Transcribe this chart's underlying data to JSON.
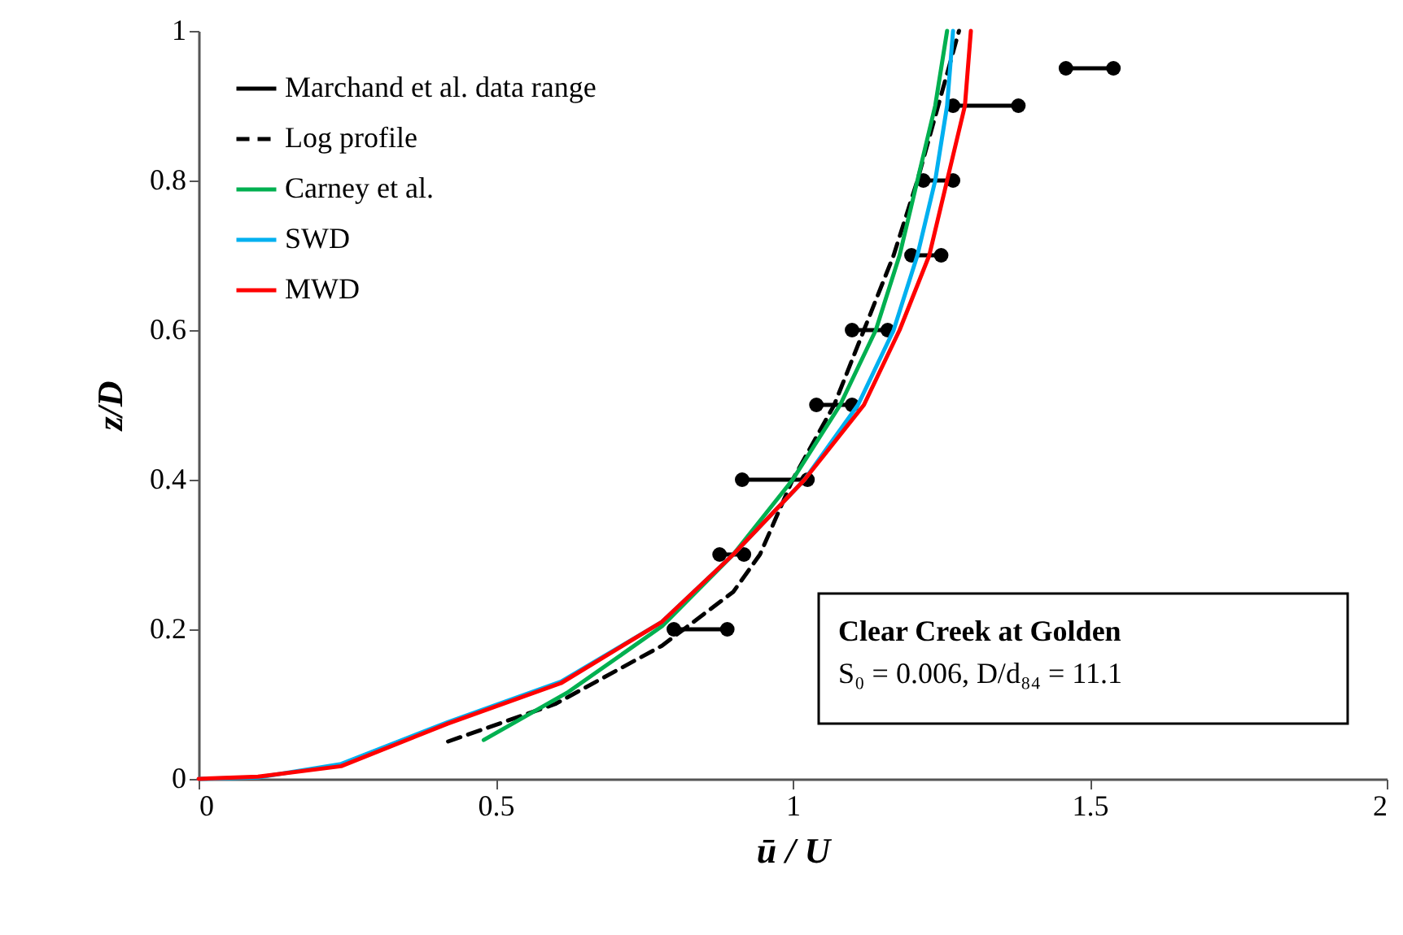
{
  "chart_data": {
    "type": "line",
    "xlabel": "ū / U",
    "ylabel": "z/D",
    "xlim": [
      0,
      2
    ],
    "xticks": [
      0,
      0.5,
      1,
      1.5,
      2
    ],
    "ylim": [
      0,
      1
    ],
    "yticks": [
      0,
      0.2,
      0.4,
      0.6,
      0.8,
      1
    ],
    "grid": false,
    "legend": "top left",
    "series": [
      {
        "name": "Marchand et al. data range",
        "color": "#000000",
        "marker": "circle",
        "line_style": "solid",
        "x": [
          1.46,
          1.54,
          null,
          1.27,
          1.38,
          null,
          1.22,
          1.27,
          null,
          1.2,
          1.25,
          null,
          1.1,
          1.16,
          null,
          1.04,
          1.1,
          null,
          0.915,
          1.025,
          null,
          0.877,
          0.918,
          null,
          0.8,
          0.89
        ],
        "values": [
          0.95,
          0.95,
          null,
          0.9,
          0.9,
          null,
          0.8,
          0.8,
          null,
          0.7,
          0.7,
          null,
          0.6,
          0.6,
          null,
          0.5,
          0.5,
          null,
          0.4,
          0.4,
          null,
          0.3,
          0.3,
          null,
          0.2,
          0.2
        ]
      },
      {
        "name": "Log profile",
        "color": "#000000",
        "marker": "none",
        "line_style": "dashed",
        "x": [
          0.42,
          0.6,
          0.78,
          0.9,
          0.945,
          1.0,
          1.07,
          1.12,
          1.17,
          1.21,
          1.245,
          1.28
        ],
        "values": [
          0.05,
          0.1,
          0.178,
          0.25,
          0.3,
          0.4,
          0.5,
          0.6,
          0.7,
          0.8,
          0.9,
          1.0
        ]
      },
      {
        "name": "Carney et al.",
        "color": "#00b050",
        "marker": "none",
        "line_style": "solid",
        "x": [
          0.48,
          0.62,
          0.78,
          0.9,
          1.0,
          1.08,
          1.14,
          1.18,
          1.21,
          1.24,
          1.26
        ],
        "values": [
          0.052,
          0.115,
          0.204,
          0.3,
          0.4,
          0.5,
          0.6,
          0.7,
          0.8,
          0.9,
          1.0
        ]
      },
      {
        "name": "SWD",
        "color": "#00b0f0",
        "marker": "none",
        "line_style": "solid",
        "x": [
          0,
          0.1,
          0.24,
          0.42,
          0.61,
          0.78,
          0.9,
          1.02,
          1.11,
          1.17,
          1.21,
          1.24,
          1.26,
          1.27
        ],
        "values": [
          0,
          0.002,
          0.02,
          0.076,
          0.13,
          0.21,
          0.3,
          0.4,
          0.5,
          0.6,
          0.7,
          0.8,
          0.9,
          1.0
        ]
      },
      {
        "name": "MWD",
        "color": "#ff0000",
        "marker": "none",
        "line_style": "solid",
        "x": [
          0,
          0.1,
          0.24,
          0.42,
          0.61,
          0.78,
          0.9,
          1.02,
          1.12,
          1.18,
          1.23,
          1.26,
          1.29,
          1.3
        ],
        "values": [
          0,
          0.003,
          0.017,
          0.074,
          0.128,
          0.21,
          0.3,
          0.4,
          0.5,
          0.6,
          0.7,
          0.8,
          0.9,
          1.0
        ]
      }
    ],
    "annotations": [
      "Clear Creek at Golden",
      "S₀ = 0.006, D/d₈₄ = 11.1"
    ]
  }
}
